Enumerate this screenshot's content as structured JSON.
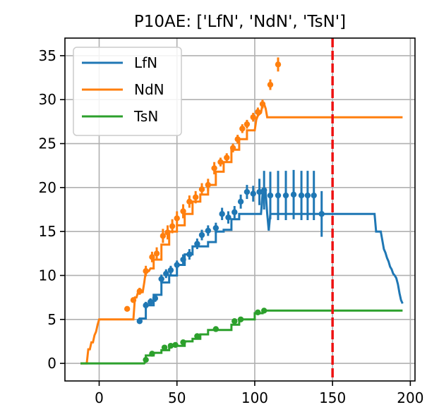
{
  "chart_data": {
    "type": "line",
    "title": "P10AE: ['LfN', 'NdN', 'TsN']",
    "xlabel": "",
    "ylabel": "",
    "xlim": [
      -22,
      203
    ],
    "ylim": [
      -2,
      37
    ],
    "xticks": [
      0,
      50,
      100,
      150,
      200
    ],
    "yticks": [
      0,
      5,
      10,
      15,
      20,
      25,
      30,
      35
    ],
    "grid": true,
    "legend_position": "upper-left",
    "vline": {
      "x": 150,
      "color": "#ee1111",
      "style": "dashed"
    },
    "series": [
      {
        "name": "LfN",
        "color": "#1f77b4",
        "line": [
          [
            25,
            4.8
          ],
          [
            26,
            5.1
          ],
          [
            28,
            5.1
          ],
          [
            30,
            5.1
          ],
          [
            30,
            6.6
          ],
          [
            33,
            6.6
          ],
          [
            35,
            6.6
          ],
          [
            35,
            7.8
          ],
          [
            38,
            7.8
          ],
          [
            40,
            7.8
          ],
          [
            40,
            9.2
          ],
          [
            43,
            9.2
          ],
          [
            45,
            9.2
          ],
          [
            45,
            10
          ],
          [
            48,
            10
          ],
          [
            50,
            10
          ],
          [
            50,
            11.2
          ],
          [
            53,
            11.2
          ],
          [
            55,
            11.2
          ],
          [
            55,
            12.4
          ],
          [
            58,
            12.4
          ],
          [
            60,
            12.4
          ],
          [
            60,
            13.3
          ],
          [
            65,
            13.3
          ],
          [
            65,
            13.3
          ],
          [
            70,
            13.3
          ],
          [
            70,
            13.8
          ],
          [
            74,
            13.8
          ],
          [
            75,
            13.8
          ],
          [
            75,
            15
          ],
          [
            80,
            15
          ],
          [
            80,
            15.2
          ],
          [
            84,
            15.2
          ],
          [
            85,
            15.2
          ],
          [
            85,
            16.4
          ],
          [
            90,
            16.4
          ],
          [
            90,
            17
          ],
          [
            96,
            17
          ],
          [
            97,
            17
          ],
          [
            100,
            17
          ],
          [
            101,
            17
          ],
          [
            104,
            17
          ],
          [
            105,
            19.3
          ],
          [
            107,
            19.5
          ],
          [
            108,
            17
          ],
          [
            109,
            15.1
          ],
          [
            110,
            17
          ],
          [
            145,
            17
          ],
          [
            177,
            17
          ],
          [
            178,
            15
          ],
          [
            181,
            15
          ],
          [
            182,
            14
          ],
          [
            183,
            13
          ],
          [
            184,
            12.6
          ],
          [
            185,
            12
          ],
          [
            186,
            11.6
          ],
          [
            187,
            11
          ],
          [
            188,
            10.7
          ],
          [
            189,
            10.2
          ],
          [
            190,
            10
          ],
          [
            191,
            9.7
          ],
          [
            192,
            9
          ],
          [
            193,
            8
          ],
          [
            194,
            7.2
          ],
          [
            195,
            6.8
          ]
        ],
        "points": [
          [
            26,
            4.8
          ],
          [
            30,
            6.6
          ],
          [
            33,
            7
          ],
          [
            36,
            7.4
          ],
          [
            40,
            9.6
          ],
          [
            43,
            10.2
          ],
          [
            46,
            10.6
          ],
          [
            50,
            11.2
          ],
          [
            54,
            11.8
          ],
          [
            58,
            12.4
          ],
          [
            63,
            13.6
          ],
          [
            66,
            14.6
          ],
          [
            70,
            15.1
          ],
          [
            75,
            15.4
          ],
          [
            79,
            17
          ],
          [
            83,
            16.6
          ],
          [
            87,
            17.2
          ],
          [
            91,
            18.4
          ],
          [
            95,
            19.5
          ],
          [
            99,
            19.3
          ],
          [
            103,
            19.5
          ],
          [
            106,
            19.7
          ],
          [
            110,
            19.1
          ],
          [
            115,
            19.1
          ],
          [
            120,
            19.1
          ],
          [
            125,
            19.2
          ],
          [
            130,
            19.1
          ],
          [
            134,
            19.1
          ],
          [
            138,
            19.1
          ],
          [
            143,
            17
          ]
        ],
        "errors": [
          0.3,
          0.4,
          0.4,
          0.4,
          0.5,
          0.5,
          0.5,
          0.5,
          0.6,
          0.6,
          0.6,
          0.6,
          0.6,
          0.6,
          0.7,
          0.7,
          0.7,
          0.8,
          0.8,
          0.9,
          1.5,
          2.2,
          2.7,
          2.8,
          2.8,
          2.8,
          2.8,
          2.8,
          2.8,
          2.6
        ]
      },
      {
        "name": "NdN",
        "color": "#ff7f0e",
        "line": [
          [
            -12,
            0
          ],
          [
            -8,
            0
          ],
          [
            -7,
            1.6
          ],
          [
            -6,
            1.6
          ],
          [
            -5,
            2.4
          ],
          [
            -4,
            2.4
          ],
          [
            -3,
            3.2
          ],
          [
            -2,
            3.6
          ],
          [
            -1,
            4.4
          ],
          [
            0,
            5
          ],
          [
            22,
            5
          ],
          [
            23,
            7.5
          ],
          [
            24,
            7.5
          ],
          [
            25,
            8.1
          ],
          [
            28,
            8.1
          ],
          [
            29,
            9.2
          ],
          [
            30,
            10.5
          ],
          [
            32,
            10.5
          ],
          [
            33,
            10.8
          ],
          [
            35,
            10.8
          ],
          [
            35,
            11.8
          ],
          [
            38,
            11.8
          ],
          [
            40,
            11.8
          ],
          [
            40,
            13.5
          ],
          [
            43,
            13.5
          ],
          [
            45,
            13.5
          ],
          [
            45,
            15
          ],
          [
            48,
            15
          ],
          [
            50,
            15
          ],
          [
            50,
            15.7
          ],
          [
            54,
            15.7
          ],
          [
            55,
            15.7
          ],
          [
            55,
            17
          ],
          [
            59,
            17
          ],
          [
            60,
            17
          ],
          [
            60,
            18.4
          ],
          [
            64,
            18.4
          ],
          [
            65,
            18.4
          ],
          [
            65,
            19.2
          ],
          [
            69,
            19.2
          ],
          [
            70,
            19.2
          ],
          [
            70,
            20.3
          ],
          [
            74,
            20.3
          ],
          [
            75,
            20.3
          ],
          [
            75,
            21.8
          ],
          [
            79,
            21.8
          ],
          [
            80,
            21.8
          ],
          [
            80,
            22.9
          ],
          [
            84,
            22.9
          ],
          [
            85,
            22.9
          ],
          [
            85,
            24.3
          ],
          [
            89,
            24.3
          ],
          [
            90,
            24.3
          ],
          [
            90,
            25.5
          ],
          [
            94,
            25.5
          ],
          [
            95,
            25.5
          ],
          [
            95,
            26.5
          ],
          [
            99,
            26.5
          ],
          [
            100,
            26.5
          ],
          [
            101,
            27.7
          ],
          [
            102,
            28.2
          ],
          [
            104,
            28.5
          ],
          [
            105,
            29.5
          ],
          [
            106,
            29.5
          ],
          [
            107,
            29
          ],
          [
            108,
            28
          ],
          [
            195,
            28
          ]
        ],
        "points": [
          [
            18,
            6.2
          ],
          [
            22,
            7.2
          ],
          [
            26,
            8.2
          ],
          [
            30,
            10.5
          ],
          [
            34,
            12.1
          ],
          [
            37,
            12.5
          ],
          [
            41,
            14.5
          ],
          [
            44,
            14.9
          ],
          [
            47,
            15.6
          ],
          [
            50,
            16.5
          ],
          [
            54,
            17.3
          ],
          [
            58,
            18.4
          ],
          [
            62,
            18.9
          ],
          [
            66,
            19.8
          ],
          [
            70,
            20.3
          ],
          [
            74,
            22.2
          ],
          [
            78,
            22.9
          ],
          [
            82,
            23.4
          ],
          [
            86,
            24.5
          ],
          [
            89,
            25.5
          ],
          [
            92,
            26.7
          ],
          [
            95,
            27.2
          ],
          [
            99,
            28
          ],
          [
            102,
            28.6
          ],
          [
            105,
            29.5
          ],
          [
            110,
            31.7
          ],
          [
            115,
            34
          ]
        ],
        "errors": [
          0.3,
          0.3,
          0.4,
          0.6,
          0.6,
          0.7,
          0.8,
          0.8,
          0.8,
          0.8,
          0.8,
          0.7,
          0.7,
          0.7,
          0.7,
          0.7,
          0.5,
          0.5,
          0.5,
          0.5,
          0.5,
          0.5,
          0.5,
          0.5,
          0.5,
          0.6,
          0.8
        ]
      },
      {
        "name": "TsN",
        "color": "#2ca02c",
        "line": [
          [
            -12,
            0
          ],
          [
            29,
            0
          ],
          [
            30,
            0.3
          ],
          [
            30,
            0.9
          ],
          [
            34,
            0.9
          ],
          [
            35,
            0.9
          ],
          [
            35,
            1.2
          ],
          [
            40,
            1.2
          ],
          [
            40,
            1.5
          ],
          [
            44,
            1.5
          ],
          [
            45,
            1.5
          ],
          [
            45,
            2
          ],
          [
            54,
            2
          ],
          [
            55,
            2
          ],
          [
            55,
            2.5
          ],
          [
            59,
            2.5
          ],
          [
            60,
            2.5
          ],
          [
            60,
            2.8
          ],
          [
            64,
            2.8
          ],
          [
            65,
            2.8
          ],
          [
            65,
            3.3
          ],
          [
            69,
            3.3
          ],
          [
            70,
            3.3
          ],
          [
            70,
            3.8
          ],
          [
            84,
            3.8
          ],
          [
            85,
            3.8
          ],
          [
            85,
            4.4
          ],
          [
            89,
            4.4
          ],
          [
            90,
            4.4
          ],
          [
            90,
            5
          ],
          [
            99,
            5
          ],
          [
            100,
            5
          ],
          [
            100,
            5.7
          ],
          [
            104,
            5.7
          ],
          [
            105,
            5.7
          ],
          [
            105,
            6
          ],
          [
            195,
            6
          ]
        ],
        "points": [
          [
            30,
            0.4
          ],
          [
            34,
            1.1
          ],
          [
            42,
            1.8
          ],
          [
            46,
            2
          ],
          [
            49,
            2.1
          ],
          [
            54,
            2.4
          ],
          [
            63,
            3.1
          ],
          [
            75,
            3.9
          ],
          [
            87,
            4.8
          ],
          [
            91,
            5
          ],
          [
            102,
            5.8
          ],
          [
            106,
            6
          ]
        ],
        "errors": [
          0.2,
          0.2,
          0.2,
          0.2,
          0.2,
          0.2,
          0.2,
          0.2,
          0.2,
          0.2,
          0.2,
          0.2
        ]
      }
    ]
  }
}
